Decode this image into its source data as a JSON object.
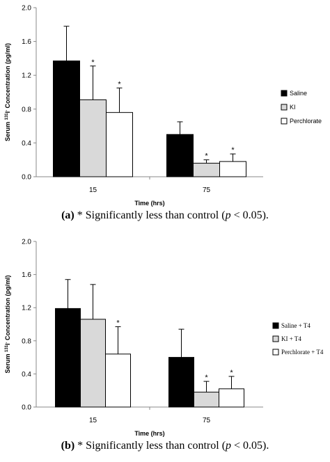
{
  "chart_data": [
    {
      "type": "bar",
      "panel": "a",
      "categories": [
        "15",
        "75"
      ],
      "xlabel": "Time (hrs)",
      "ylabel_pre": "Serum ",
      "ylabel_sup": "131",
      "ylabel_mid": "I",
      "ylabel_sup2": "-",
      "ylabel_post": " Concentration (pg/ml)",
      "ylim": [
        0,
        2.0
      ],
      "yticks": [
        "0.0",
        "0.4",
        "0.8",
        "1.2",
        "1.6",
        "2.0"
      ],
      "grid": false,
      "legend_position": "right",
      "series": [
        {
          "name": "Saline",
          "color": "#000000",
          "values": [
            1.37,
            0.5
          ],
          "errors": [
            0.41,
            0.15
          ],
          "significant": [
            false,
            false
          ]
        },
        {
          "name": "KI",
          "color": "#d9d9d9",
          "values": [
            0.91,
            0.16
          ],
          "errors": [
            0.4,
            0.04
          ],
          "significant": [
            true,
            true
          ]
        },
        {
          "name": "Perchlorate",
          "color": "#ffffff",
          "values": [
            0.76,
            0.18
          ],
          "errors": [
            0.29,
            0.09
          ],
          "significant": [
            true,
            true
          ]
        }
      ],
      "significance_marker": "*",
      "caption": {
        "label": "(a)",
        "mid": " * Significantly less than control (",
        "p": "p",
        "end": " < 0.05)."
      }
    },
    {
      "type": "bar",
      "panel": "b",
      "categories": [
        "15",
        "75"
      ],
      "xlabel": "Time (hrs)",
      "ylabel_pre": "Serum ",
      "ylabel_sup": "131",
      "ylabel_mid": "I",
      "ylabel_sup2": "-",
      "ylabel_post": " Concentration (pg/ml)",
      "ylim": [
        0,
        2.0
      ],
      "yticks": [
        "0.0",
        "0.4",
        "0.8",
        "1.2",
        "1.6",
        "2.0"
      ],
      "grid": false,
      "legend_position": "right",
      "series": [
        {
          "name": "Saline + T4",
          "color": "#000000",
          "values": [
            1.19,
            0.6
          ],
          "errors": [
            0.35,
            0.34
          ],
          "significant": [
            false,
            false
          ]
        },
        {
          "name": "KI + T4",
          "color": "#d9d9d9",
          "values": [
            1.06,
            0.18
          ],
          "errors": [
            0.42,
            0.13
          ],
          "significant": [
            false,
            true
          ]
        },
        {
          "name": "Perchlorate + T4",
          "color": "#ffffff",
          "values": [
            0.64,
            0.22
          ],
          "errors": [
            0.33,
            0.15
          ],
          "significant": [
            true,
            true
          ]
        }
      ],
      "significance_marker": "*",
      "caption": {
        "label": "(b)",
        "mid": " * Significantly less than control (",
        "p": "p",
        "end": " < 0.05)."
      }
    }
  ]
}
